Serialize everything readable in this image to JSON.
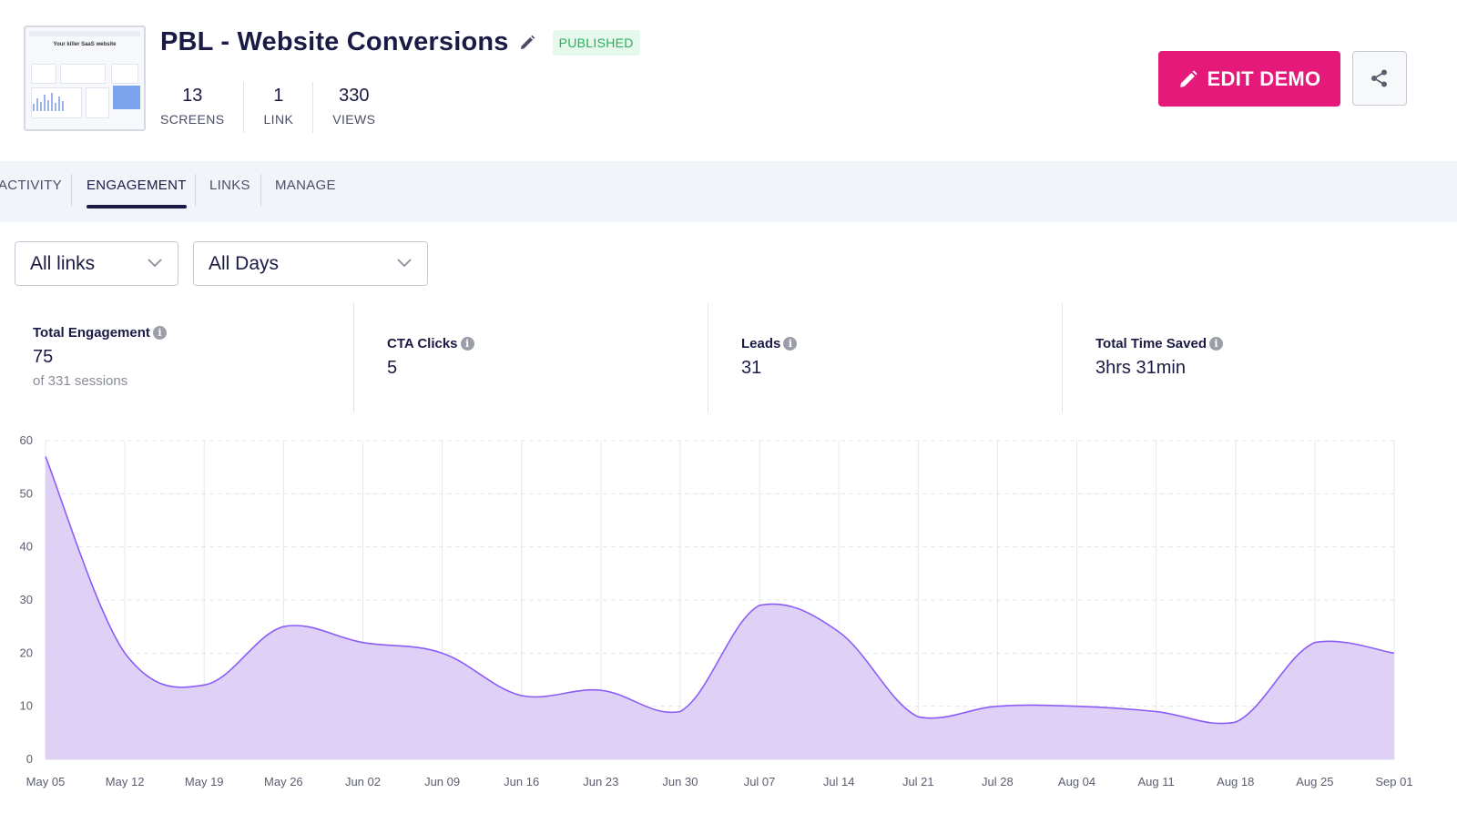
{
  "header": {
    "title": "PBL - Website Conversions",
    "status_badge": "PUBLISHED",
    "thumbnail_title": "Your killer SaaS website",
    "stats": [
      {
        "value": "13",
        "label": "SCREENS"
      },
      {
        "value": "1",
        "label": "LINK"
      },
      {
        "value": "330",
        "label": "VIEWS"
      }
    ],
    "edit_button": "EDIT DEMO",
    "accent_color": "#e5197a"
  },
  "tabs": [
    {
      "label": "ACTIVITY",
      "active": false
    },
    {
      "label": "ENGAGEMENT",
      "active": true
    },
    {
      "label": "LINKS",
      "active": false
    },
    {
      "label": "MANAGE",
      "active": false
    }
  ],
  "filters": {
    "links": "All links",
    "days": "All Days"
  },
  "metrics": [
    {
      "title": "Total Engagement",
      "value": "75",
      "sub": "of 331 sessions"
    },
    {
      "title": "CTA Clicks",
      "value": "5"
    },
    {
      "title": "Leads",
      "value": "31"
    },
    {
      "title": "Total Time Saved",
      "value": "3hrs 31min"
    }
  ],
  "chart_data": {
    "type": "area",
    "title": "",
    "xlabel": "",
    "ylabel": "",
    "ylim": [
      0,
      60
    ],
    "yticks": [
      0,
      10,
      20,
      30,
      40,
      50,
      60
    ],
    "grid": true,
    "color": "#8b5cf6",
    "fill": "#d9c9f4",
    "categories": [
      "May 05",
      "May 12",
      "May 19",
      "May 26",
      "Jun 02",
      "Jun 09",
      "Jun 16",
      "Jun 23",
      "Jun 30",
      "Jul 07",
      "Jul 14",
      "Jul 21",
      "Jul 28",
      "Aug 04",
      "Aug 11",
      "Aug 18",
      "Aug 25",
      "Sep 01"
    ],
    "series": [
      {
        "name": "Engagement",
        "values": [
          57,
          20,
          14,
          25,
          22,
          20,
          12,
          13,
          9,
          29,
          24,
          8,
          10,
          10,
          9,
          7,
          22,
          20
        ]
      }
    ]
  }
}
